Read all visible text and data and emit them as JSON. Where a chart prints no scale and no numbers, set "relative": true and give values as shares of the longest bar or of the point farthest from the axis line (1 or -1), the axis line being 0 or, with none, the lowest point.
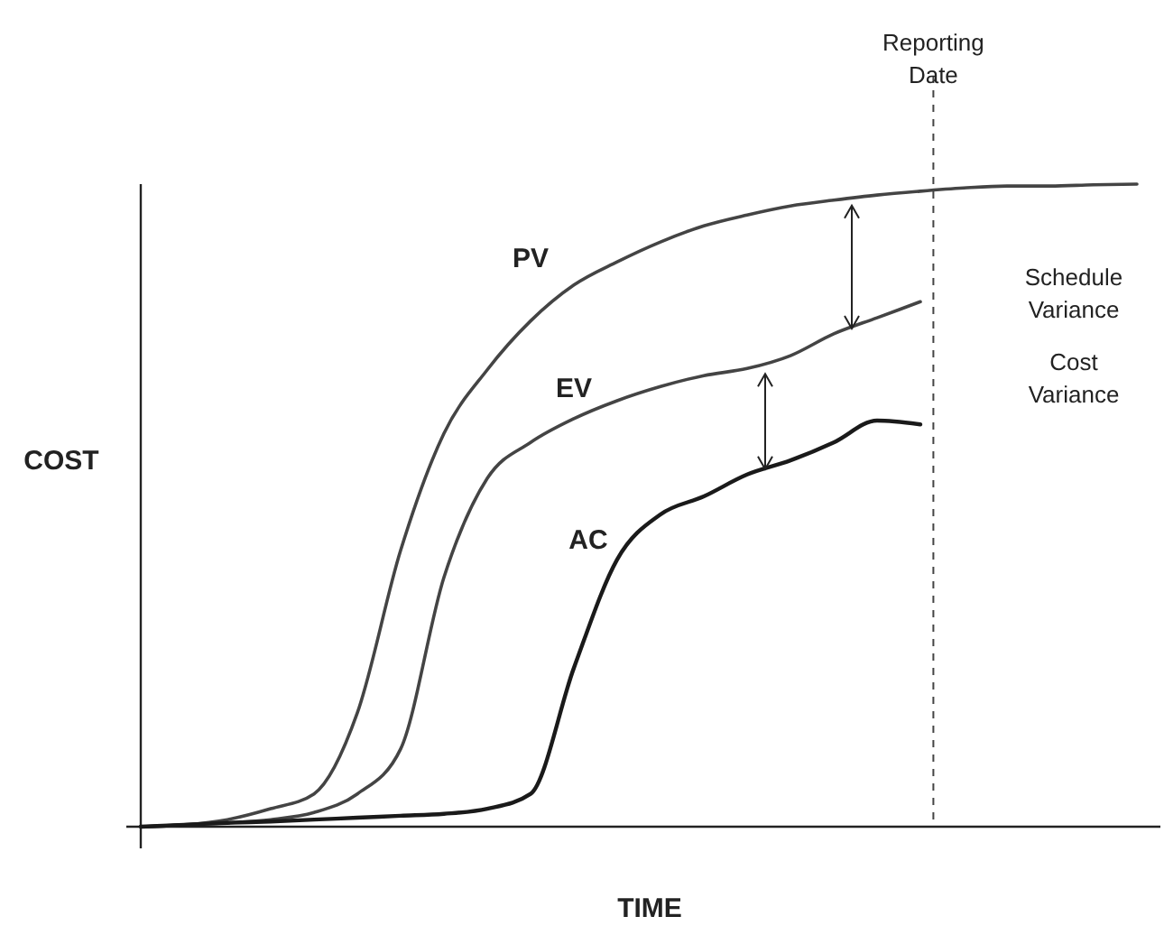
{
  "chart_data": {
    "type": "line",
    "relative": true,
    "xlabel": "TIME",
    "ylabel": "COST",
    "line_style": "solid",
    "categories": [
      null,
      null,
      null,
      null,
      null,
      null,
      null,
      null,
      null,
      null,
      null,
      null,
      null,
      null,
      null,
      null,
      null,
      null,
      null,
      null,
      null,
      null,
      null,
      null
    ],
    "series": [
      {
        "name": "PV",
        "color": "#444444",
        "values": [
          0,
          0.003,
          0.011,
          0.028,
          0.051,
          0.177,
          0.43,
          0.612,
          0.711,
          0.787,
          0.843,
          0.879,
          0.91,
          0.935,
          0.952,
          0.966,
          0.975,
          0.983,
          0.989,
          0.994,
          0.997,
          0.997,
          0.999,
          1
        ]
      },
      {
        "name": "EV",
        "color": "#444444",
        "values": [
          0,
          0.003,
          0.006,
          0.011,
          0.022,
          0.051,
          0.121,
          0.388,
          0.542,
          0.598,
          0.635,
          0.663,
          0.685,
          0.702,
          0.713,
          0.733,
          0.767,
          0.792,
          0.817,
          null,
          null,
          null,
          null,
          null
        ]
      },
      {
        "name": "AC",
        "color": "#1a1a1a",
        "values": [
          0,
          0.003,
          0.006,
          0.008,
          0.011,
          0.014,
          0.017,
          0.02,
          0.028,
          0.051,
          0.247,
          0.416,
          0.486,
          0.514,
          0.548,
          0.57,
          0.598,
          0.632,
          0.626,
          null,
          null,
          null,
          null,
          null
        ]
      }
    ],
    "annotations": [
      "Reporting Date",
      "Schedule Variance",
      "Cost Variance"
    ]
  }
}
